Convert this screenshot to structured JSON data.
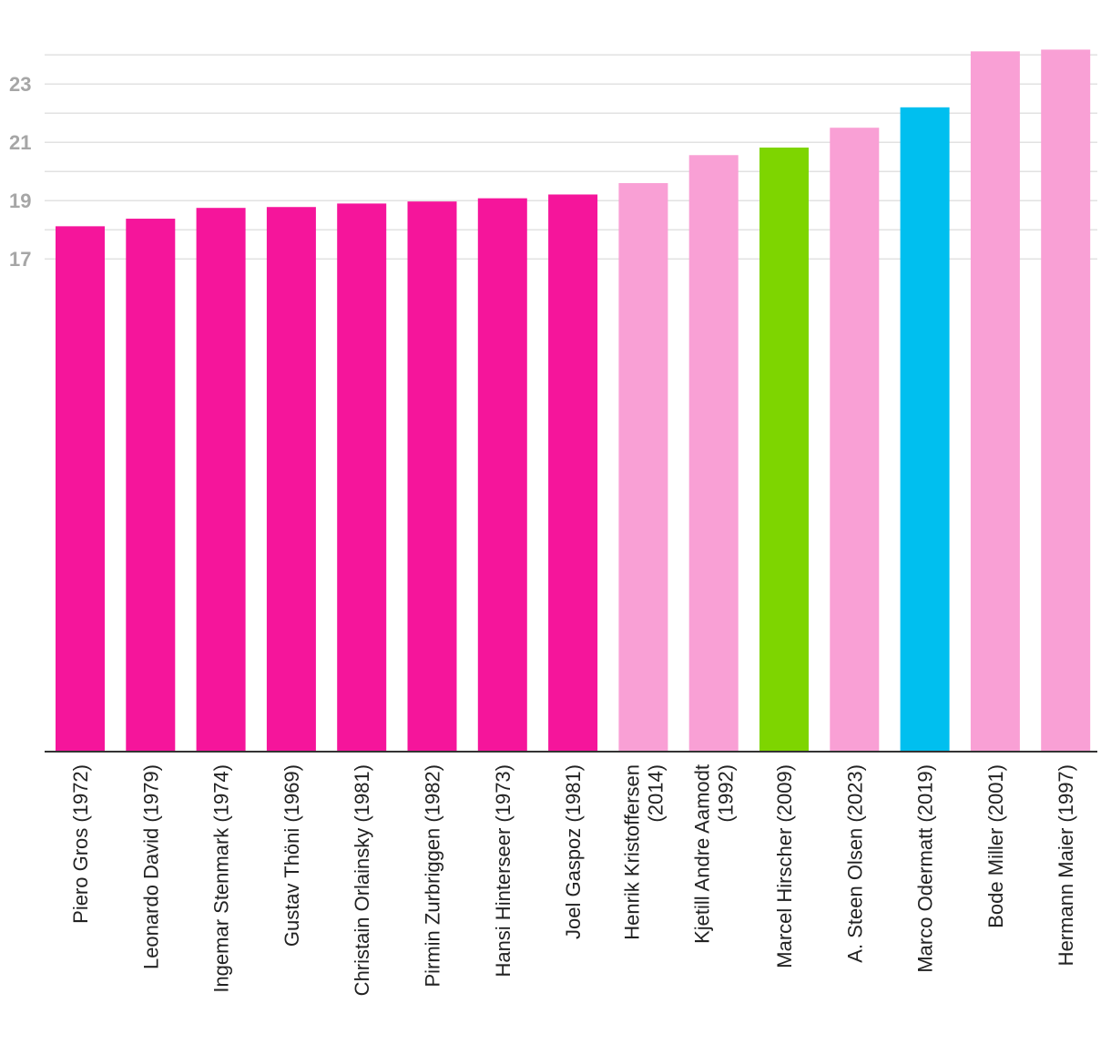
{
  "chart_data": {
    "type": "bar",
    "title": "",
    "xlabel": "",
    "ylabel": "",
    "categories": [
      "Piero Gros (1972)",
      "Leonardo David (1979)",
      "Ingemar Stenmark (1974)",
      "Gustav Thöni (1969)",
      "Christain Orlainsky (1981)",
      "Pirmin Zurbriggen (1982)",
      "Hansi Hinterseer (1973)",
      "Joel Gaspoz (1981)",
      "Henrik Kristoffersen (2014)",
      "Kjetill Andre Aamodt (1992)",
      "Marcel Hirscher (2009)",
      "A. Steen Olsen (2023)",
      "Marco Odermatt (2019)",
      "Bode Miller (2001)",
      "Hermann Maier (1997)"
    ],
    "category_lines": [
      [
        "Piero Gros (1972)"
      ],
      [
        "Leonardo David (1979)"
      ],
      [
        "Ingemar Stenmark (1974)"
      ],
      [
        "Gustav Thöni (1969)"
      ],
      [
        "Christain Orlainsky (1981)"
      ],
      [
        "Pirmin Zurbriggen (1982)"
      ],
      [
        "Hansi Hinterseer (1973)"
      ],
      [
        "Joel Gaspoz (1981)"
      ],
      [
        "Henrik Kristoffersen",
        "(2014)"
      ],
      [
        "Kjetill Andre Aamodt",
        "(1992)"
      ],
      [
        "Marcel Hirscher (2009)"
      ],
      [
        "A. Steen Olsen (2023)"
      ],
      [
        "Marco Odermatt (2019)"
      ],
      [
        "Bode Miller (2001)"
      ],
      [
        "Hermann Maier (1997)"
      ]
    ],
    "values": [
      18.12,
      18.38,
      18.75,
      18.78,
      18.9,
      18.97,
      19.08,
      19.21,
      19.6,
      20.56,
      20.82,
      21.5,
      22.2,
      24.12,
      24.18
    ],
    "colors": [
      "#f5159b",
      "#f5159b",
      "#f5159b",
      "#f5159b",
      "#f5159b",
      "#f5159b",
      "#f5159b",
      "#f5159b",
      "#f9a0d5",
      "#f9a0d5",
      "#7ed500",
      "#f9a0d5",
      "#00bfef",
      "#f9a0d5",
      "#f9a0d5"
    ],
    "y_ticks": [
      17,
      19,
      21,
      23
    ],
    "y_tick_labels": [
      "17",
      "19",
      "21",
      "23"
    ],
    "grid_values": [
      17,
      18,
      19,
      20,
      21,
      22,
      23,
      24
    ],
    "ylim": [
      0.1,
      24.2
    ],
    "grid": true
  }
}
